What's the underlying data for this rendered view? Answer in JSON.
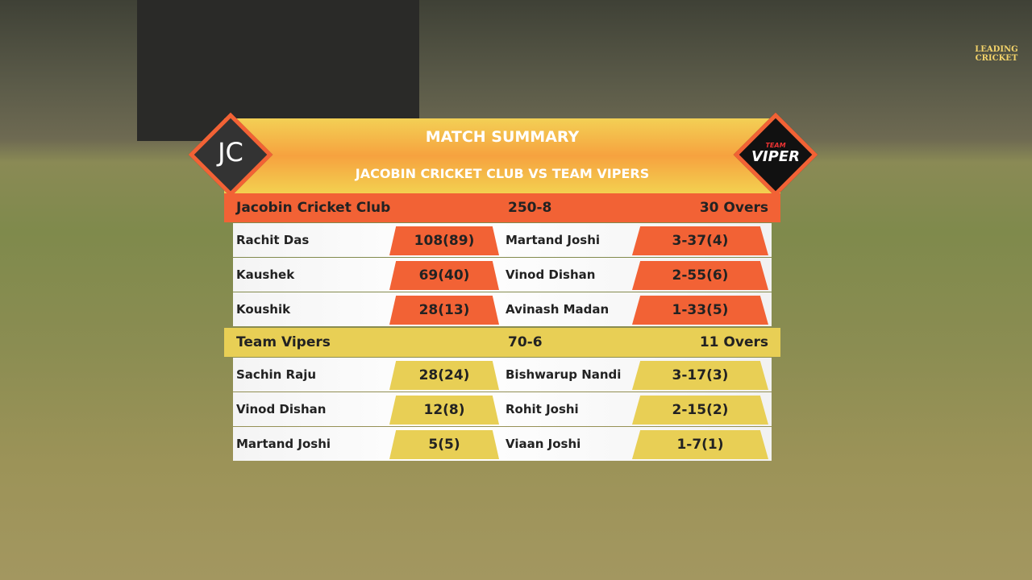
{
  "broadcaster": "LEADING CRICKET",
  "header": {
    "title": "MATCH SUMMARY",
    "subtitle": "JACOBIN CRICKET CLUB VS TEAM VIPERS",
    "left_logo": "JC",
    "right_logo_top": "TEAM",
    "right_logo": "VIPER"
  },
  "innings": [
    {
      "team": "Jacobin Cricket Club",
      "score": "250-8",
      "overs": "30 Overs",
      "batting": [
        {
          "name": "Rachit Das",
          "score": "108(89)"
        },
        {
          "name": "Kaushek",
          "score": "69(40)"
        },
        {
          "name": "Koushik",
          "score": "28(13)"
        }
      ],
      "bowling": [
        {
          "name": "Martand Joshi",
          "figures": "3-37(4)"
        },
        {
          "name": "Vinod Dishan",
          "figures": "2-55(6)"
        },
        {
          "name": "Avinash Madan",
          "figures": "1-33(5)"
        }
      ]
    },
    {
      "team": "Team Vipers",
      "score": "70-6",
      "overs": "11 Overs",
      "batting": [
        {
          "name": "Sachin Raju",
          "score": "28(24)"
        },
        {
          "name": "Vinod Dishan",
          "score": "12(8)"
        },
        {
          "name": "Martand Joshi",
          "score": "5(5)"
        }
      ],
      "bowling": [
        {
          "name": "Bishwarup Nandi",
          "figures": "3-17(3)"
        },
        {
          "name": "Rohit Joshi",
          "figures": "2-15(2)"
        },
        {
          "name": "Viaan Joshi",
          "figures": "1-7(1)"
        }
      ]
    }
  ]
}
